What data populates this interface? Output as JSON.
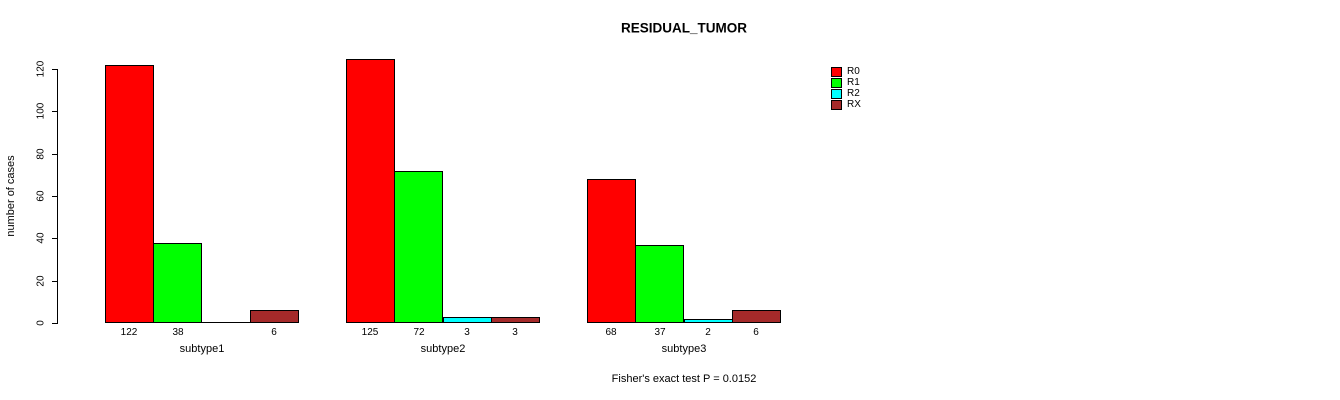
{
  "chart_data": {
    "type": "bar",
    "title": "RESIDUAL_TUMOR",
    "xlabel": "",
    "ylabel": "number of cases",
    "categories": [
      "subtype1",
      "subtype2",
      "subtype3"
    ],
    "series": [
      {
        "name": "R0",
        "color": "#ff0000",
        "values": [
          122,
          125,
          68
        ]
      },
      {
        "name": "R1",
        "color": "#00ff00",
        "values": [
          38,
          72,
          37
        ]
      },
      {
        "name": "R2",
        "color": "#00ffff",
        "values": [
          0,
          3,
          2
        ]
      },
      {
        "name": "RX",
        "color": "#a52a2a",
        "values": [
          6,
          3,
          6
        ]
      }
    ],
    "bar_value_labels": [
      [
        "122",
        "38",
        "",
        "6"
      ],
      [
        "125",
        "72",
        "3",
        "3"
      ],
      [
        "68",
        "37",
        "2",
        "6"
      ]
    ],
    "yticks": [
      0,
      20,
      40,
      60,
      80,
      100,
      120
    ],
    "ylim": [
      0,
      125
    ],
    "grid": false,
    "legend_position": "right-outside",
    "annotation": "Fisher's exact test P = 0.0152"
  }
}
